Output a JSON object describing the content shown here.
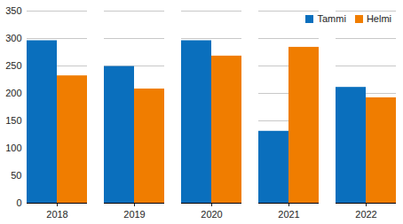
{
  "chart_data": {
    "type": "bar",
    "categories": [
      "2018",
      "2019",
      "2020",
      "2021",
      "2022"
    ],
    "series": [
      {
        "name": "Tammi",
        "color": "#0a6fbd",
        "values": [
          296,
          249,
          296,
          131,
          211
        ]
      },
      {
        "name": "Helmi",
        "color": "#f07d00",
        "values": [
          232,
          208,
          268,
          284,
          192
        ]
      }
    ],
    "ylim": [
      0,
      350
    ],
    "yticks": [
      0,
      50,
      100,
      150,
      200,
      250,
      300,
      350
    ],
    "grid": true,
    "legend": "top-right"
  }
}
